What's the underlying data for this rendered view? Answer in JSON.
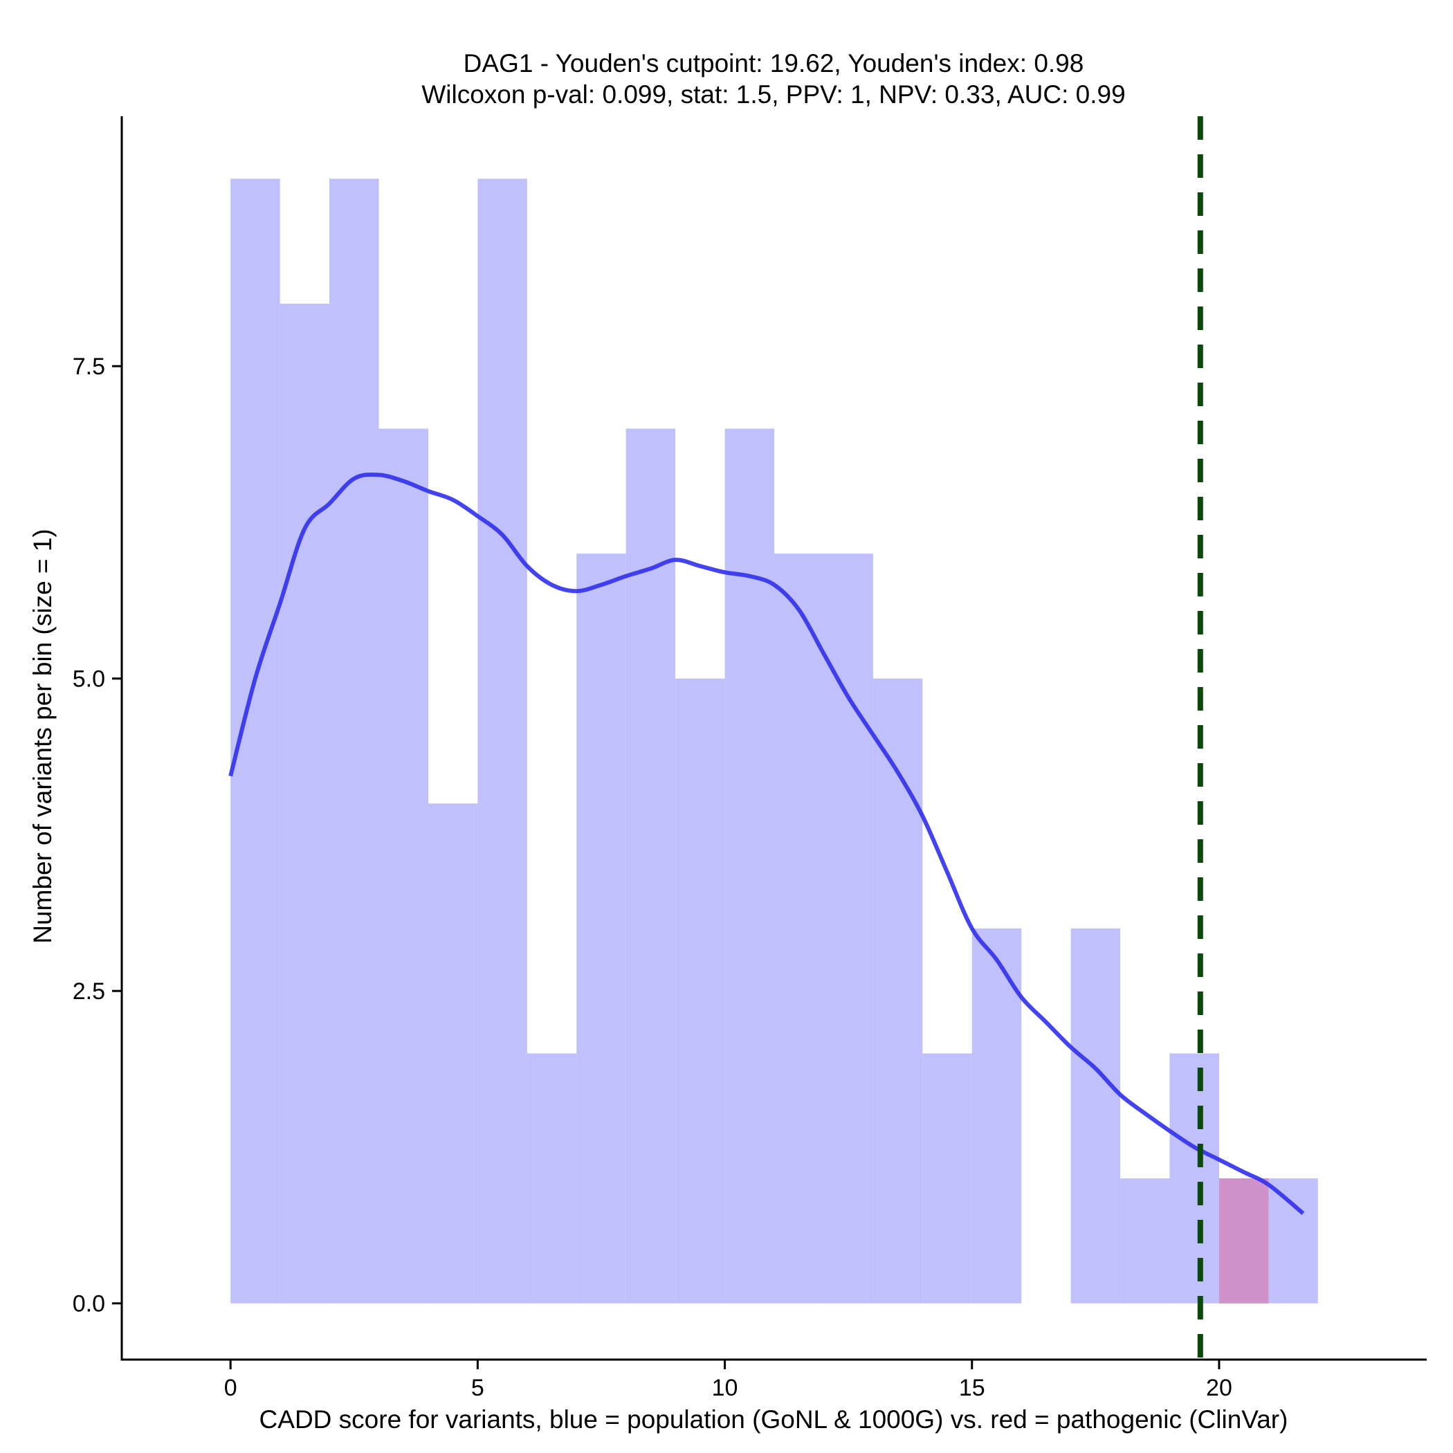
{
  "chart_data": {
    "type": "bar",
    "title": "DAG1 - Youden's cutpoint: 19.62, Youden's index: 0.98",
    "subtitle": "Wilcoxon p-val: 0.099, stat: 1.5, PPV: 1, NPV: 0.33, AUC: 0.99",
    "xlabel": "CADD score for variants, blue = population (GoNL & 1000G) vs. red = pathogenic (ClinVar)",
    "ylabel": "Number of variants per bin (size = 1)",
    "xlim": [
      -2.2,
      24.2
    ],
    "ylim": [
      -0.45,
      9.5
    ],
    "x_ticks": [
      0,
      5,
      10,
      15,
      20
    ],
    "x_tick_labels": [
      "0",
      "5",
      "10",
      "15",
      "20"
    ],
    "y_ticks": [
      0,
      2.5,
      5,
      7.5
    ],
    "y_tick_labels": [
      "0.0",
      "2.5",
      "5.0",
      "7.5"
    ],
    "bin_width": 1,
    "series": [
      {
        "name": "population (GoNL & 1000G)",
        "color": "#c0c0fc",
        "bins": [
          {
            "x0": 0,
            "count": 9
          },
          {
            "x0": 1,
            "count": 8
          },
          {
            "x0": 2,
            "count": 9
          },
          {
            "x0": 3,
            "count": 7
          },
          {
            "x0": 4,
            "count": 4
          },
          {
            "x0": 5,
            "count": 9
          },
          {
            "x0": 6,
            "count": 2
          },
          {
            "x0": 7,
            "count": 6
          },
          {
            "x0": 8,
            "count": 7
          },
          {
            "x0": 9,
            "count": 5
          },
          {
            "x0": 10,
            "count": 7
          },
          {
            "x0": 11,
            "count": 6
          },
          {
            "x0": 12,
            "count": 6
          },
          {
            "x0": 13,
            "count": 5
          },
          {
            "x0": 14,
            "count": 2
          },
          {
            "x0": 15,
            "count": 3
          },
          {
            "x0": 16,
            "count": 0
          },
          {
            "x0": 17,
            "count": 3
          },
          {
            "x0": 18,
            "count": 1
          },
          {
            "x0": 19,
            "count": 2
          },
          {
            "x0": 20,
            "count": 1
          },
          {
            "x0": 21,
            "count": 1
          }
        ]
      },
      {
        "name": "pathogenic (ClinVar)",
        "color": "#d28ec4",
        "bins": [
          {
            "x0": 20,
            "count": 1
          }
        ]
      }
    ],
    "density_curve": {
      "name": "population density",
      "color": "#3333ee",
      "x": [
        0,
        0.5,
        1.0,
        1.5,
        2.0,
        2.5,
        3.0,
        3.5,
        4.0,
        4.5,
        5.0,
        5.5,
        6.0,
        6.5,
        7.0,
        7.5,
        8.0,
        8.5,
        9.0,
        9.5,
        10.0,
        10.5,
        11.0,
        11.5,
        12.0,
        12.5,
        13.0,
        13.5,
        14.0,
        14.5,
        15.0,
        15.5,
        16.0,
        16.5,
        17.0,
        17.5,
        18.0,
        18.5,
        19.0,
        19.5,
        20.0,
        20.5,
        21.0,
        21.7
      ],
      "y": [
        4.22,
        5.0,
        5.6,
        6.2,
        6.4,
        6.6,
        6.63,
        6.58,
        6.5,
        6.43,
        6.3,
        6.15,
        5.9,
        5.75,
        5.7,
        5.75,
        5.82,
        5.88,
        5.95,
        5.9,
        5.85,
        5.82,
        5.75,
        5.55,
        5.2,
        4.85,
        4.55,
        4.25,
        3.9,
        3.45,
        3.0,
        2.75,
        2.45,
        2.25,
        2.05,
        1.88,
        1.67,
        1.52,
        1.38,
        1.25,
        1.15,
        1.05,
        0.95,
        0.72
      ]
    },
    "cutpoint": {
      "label": "Youden's cutpoint",
      "value": 19.62,
      "color": "#0b4a0b",
      "style": "dashed"
    },
    "grid": false,
    "legend": "none"
  }
}
